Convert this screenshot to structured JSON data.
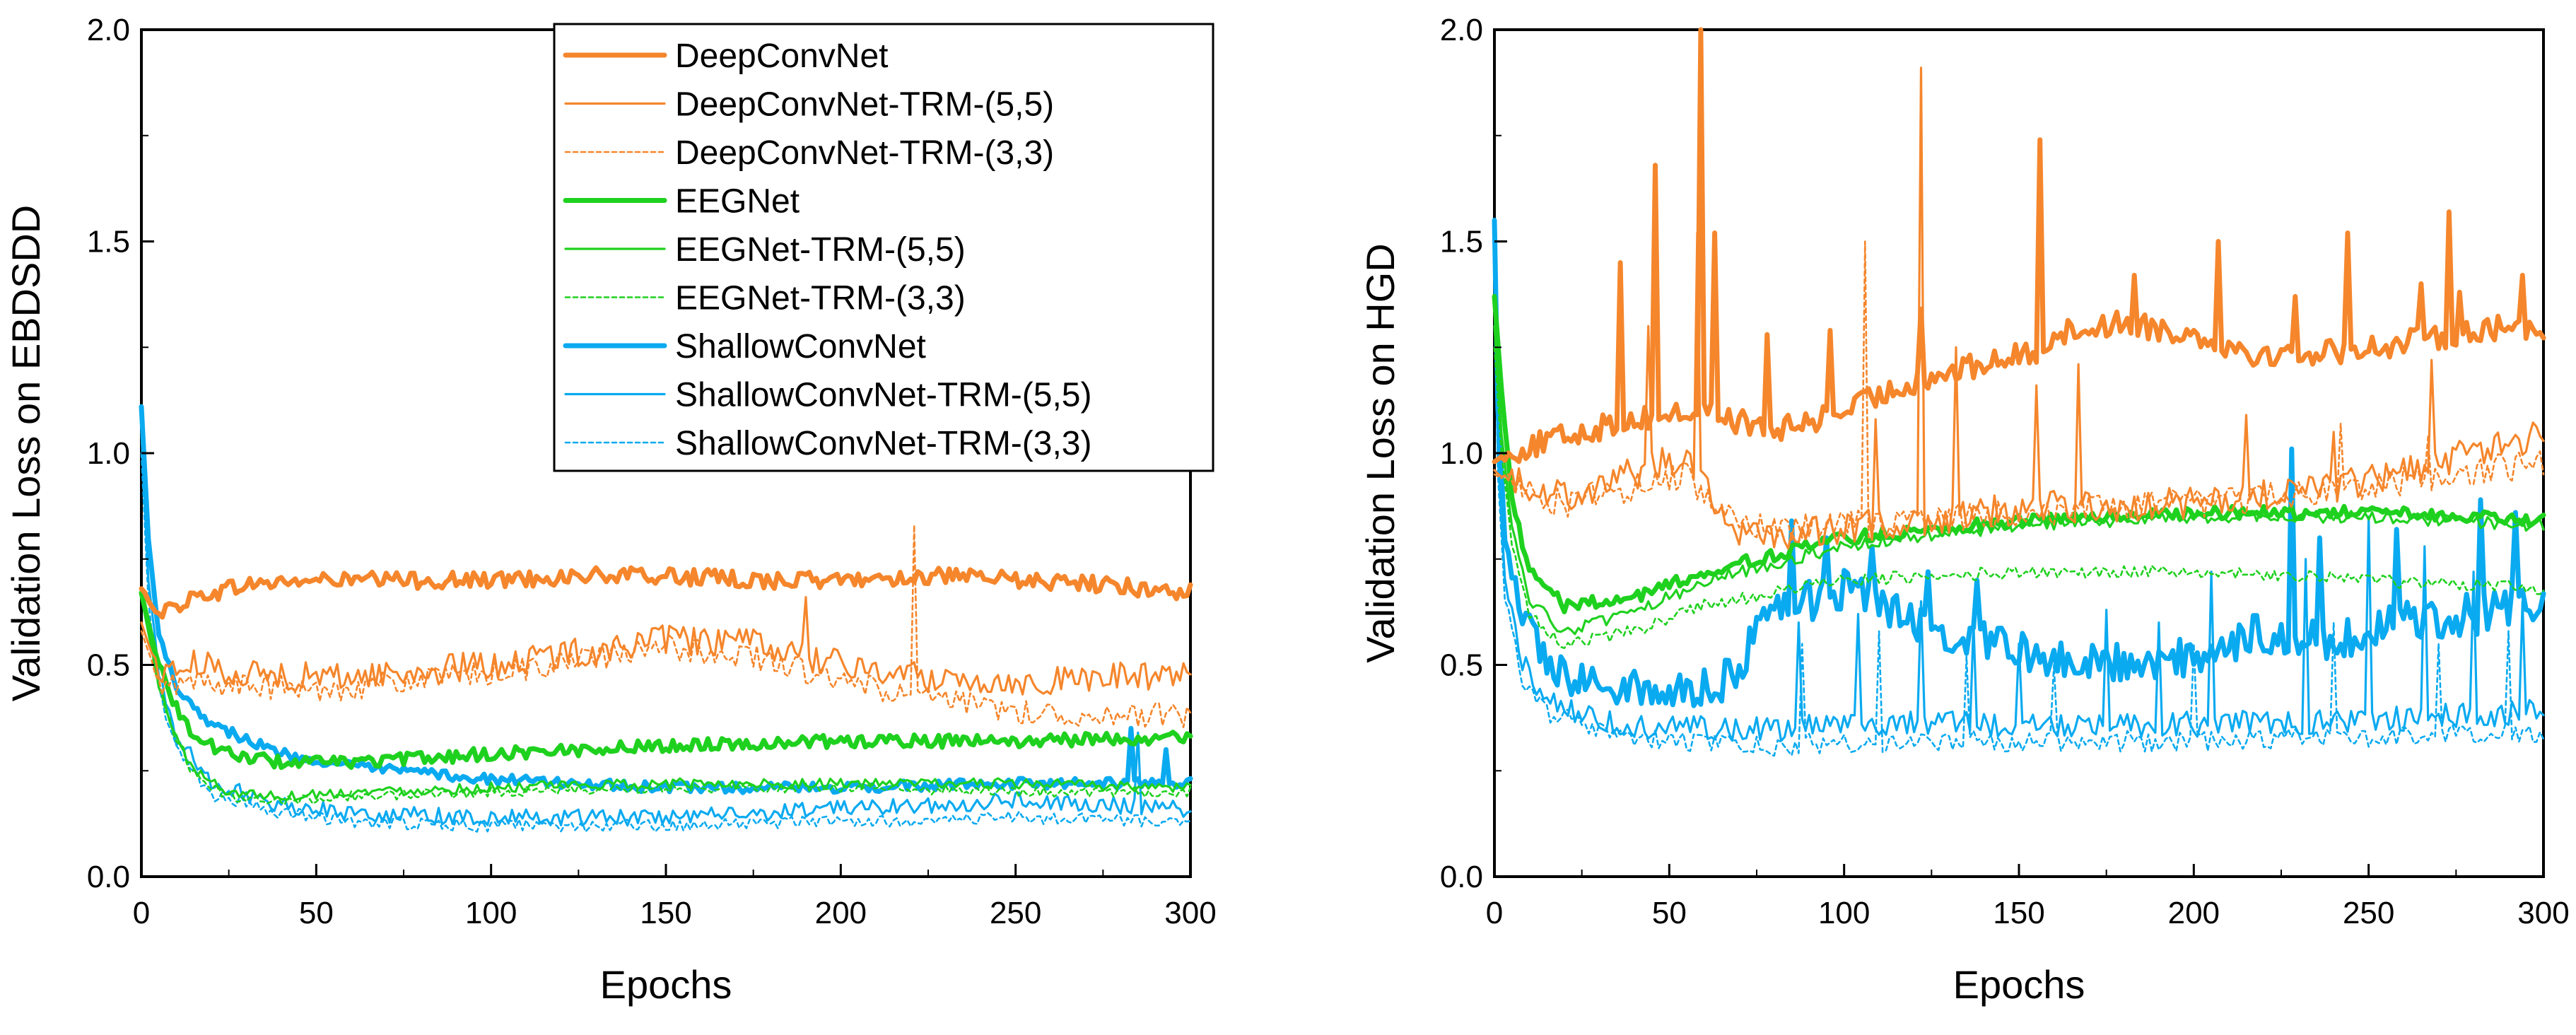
{
  "colors": {
    "DeepConvNet": "#f5862c",
    "EEGNet": "#1fd11f",
    "ShallowConvNet": "#0aaaf0"
  },
  "chart_data": [
    {
      "type": "line",
      "panel": "left",
      "title": "",
      "xlabel": "Epochs",
      "ylabel": "Validation Loss on EBDSDD",
      "xlim": [
        0,
        300
      ],
      "ylim": [
        0,
        2.0
      ],
      "xticks": [
        "0",
        "50",
        "100",
        "150",
        "200",
        "250",
        "300"
      ],
      "yticks": [
        "0.0",
        "0.5",
        "1.0",
        "1.5",
        "2.0"
      ],
      "legend": {
        "location": "top-right",
        "entries": [
          "DeepConvNet",
          "DeepConvNet-TRM-(5,5)",
          "DeepConvNet-TRM-(3,3)",
          "EEGNet",
          "EEGNet-TRM-(5,5)",
          "EEGNet-TRM-(3,3)",
          "ShallowConvNet",
          "ShallowConvNet-TRM-(5,5)",
          "ShallowConvNet-TRM-(3,3)"
        ]
      },
      "series": [
        {
          "name": "DeepConvNet",
          "family": "DeepConvNet",
          "style": "thick",
          "x": [
            0,
            5,
            15,
            30,
            50,
            75,
            100,
            125,
            150,
            175,
            200,
            225,
            250,
            275,
            300
          ],
          "y": [
            0.68,
            0.62,
            0.66,
            0.69,
            0.7,
            0.7,
            0.7,
            0.71,
            0.71,
            0.7,
            0.7,
            0.71,
            0.7,
            0.69,
            0.67
          ],
          "noise": 0.02,
          "spikes": []
        },
        {
          "name": "DeepConvNet-TRM-(5,5)",
          "family": "DeepConvNet",
          "style": "thin",
          "x": [
            0,
            5,
            15,
            30,
            50,
            75,
            100,
            125,
            150,
            175,
            200,
            225,
            250,
            275,
            300
          ],
          "y": [
            0.6,
            0.48,
            0.5,
            0.48,
            0.47,
            0.48,
            0.5,
            0.53,
            0.56,
            0.55,
            0.5,
            0.47,
            0.46,
            0.47,
            0.48
          ],
          "noise": 0.035,
          "spikes": [
            [
              190,
              0.66
            ]
          ]
        },
        {
          "name": "DeepConvNet-TRM-(3,3)",
          "family": "DeepConvNet",
          "style": "dotted",
          "x": [
            0,
            5,
            15,
            30,
            50,
            75,
            100,
            125,
            150,
            175,
            200,
            225,
            250,
            275,
            300
          ],
          "y": [
            0.58,
            0.45,
            0.46,
            0.45,
            0.44,
            0.46,
            0.48,
            0.51,
            0.54,
            0.52,
            0.46,
            0.42,
            0.39,
            0.38,
            0.38
          ],
          "noise": 0.03,
          "spikes": [
            [
              221,
              0.83
            ]
          ]
        },
        {
          "name": "EEGNet",
          "family": "EEGNet",
          "style": "thick",
          "x": [
            0,
            5,
            10,
            15,
            25,
            40,
            60,
            100,
            150,
            200,
            250,
            300
          ],
          "y": [
            0.67,
            0.5,
            0.4,
            0.33,
            0.29,
            0.27,
            0.27,
            0.29,
            0.31,
            0.32,
            0.32,
            0.33
          ],
          "noise": 0.015,
          "spikes": []
        },
        {
          "name": "EEGNet-TRM-(5,5)",
          "family": "EEGNet",
          "style": "thin",
          "x": [
            0,
            5,
            10,
            15,
            25,
            40,
            60,
            100,
            150,
            200,
            250,
            300
          ],
          "y": [
            0.66,
            0.45,
            0.33,
            0.25,
            0.2,
            0.19,
            0.2,
            0.21,
            0.22,
            0.22,
            0.22,
            0.21
          ],
          "noise": 0.012,
          "spikes": []
        },
        {
          "name": "EEGNet-TRM-(3,3)",
          "family": "EEGNet",
          "style": "dotted",
          "x": [
            0,
            5,
            10,
            15,
            25,
            40,
            60,
            100,
            150,
            200,
            250,
            300
          ],
          "y": [
            0.66,
            0.44,
            0.32,
            0.24,
            0.19,
            0.18,
            0.19,
            0.2,
            0.21,
            0.21,
            0.2,
            0.2
          ],
          "noise": 0.012,
          "spikes": []
        },
        {
          "name": "ShallowConvNet",
          "family": "ShallowConvNet",
          "style": "thick",
          "x": [
            0,
            2,
            5,
            10,
            20,
            40,
            60,
            100,
            150,
            200,
            250,
            300
          ],
          "y": [
            1.11,
            0.8,
            0.57,
            0.45,
            0.36,
            0.29,
            0.26,
            0.23,
            0.21,
            0.21,
            0.22,
            0.22
          ],
          "noise": 0.012,
          "spikes": [
            [
              283,
              0.35
            ],
            [
              293,
              0.3
            ]
          ]
        },
        {
          "name": "ShallowConvNet-TRM-(5,5)",
          "family": "ShallowConvNet",
          "style": "thin",
          "x": [
            0,
            2,
            5,
            10,
            20,
            40,
            60,
            100,
            150,
            200,
            250,
            300
          ],
          "y": [
            1.05,
            0.7,
            0.48,
            0.33,
            0.22,
            0.17,
            0.15,
            0.14,
            0.14,
            0.16,
            0.18,
            0.16
          ],
          "noise": 0.02,
          "spikes": [
            [
              285,
              0.34
            ]
          ]
        },
        {
          "name": "ShallowConvNet-TRM-(3,3)",
          "family": "ShallowConvNet",
          "style": "dotted",
          "x": [
            0,
            2,
            5,
            10,
            20,
            40,
            60,
            100,
            150,
            200,
            250,
            300
          ],
          "y": [
            1.0,
            0.65,
            0.44,
            0.3,
            0.19,
            0.15,
            0.13,
            0.12,
            0.12,
            0.13,
            0.14,
            0.13
          ],
          "noise": 0.015,
          "spikes": []
        }
      ]
    },
    {
      "type": "line",
      "panel": "right",
      "title": "",
      "xlabel": "Epochs",
      "ylabel": "Validation Loss on HGD",
      "xlim": [
        0,
        300
      ],
      "ylim": [
        0,
        2.0
      ],
      "xticks": [
        "0",
        "50",
        "100",
        "150",
        "200",
        "250",
        "300"
      ],
      "yticks": [
        "0.0",
        "0.5",
        "1.0",
        "1.5",
        "2.0"
      ],
      "series": [
        {
          "name": "DeepConvNet",
          "family": "DeepConvNet",
          "style": "thick",
          "x": [
            0,
            5,
            20,
            40,
            60,
            80,
            100,
            120,
            140,
            155,
            160,
            180,
            200,
            220,
            240,
            260,
            280,
            300
          ],
          "y": [
            0.98,
            1.0,
            1.04,
            1.08,
            1.1,
            1.05,
            1.1,
            1.17,
            1.21,
            1.24,
            1.28,
            1.31,
            1.28,
            1.23,
            1.24,
            1.26,
            1.29,
            1.3
          ],
          "noise": 0.03,
          "spikes": [
            [
              36,
              1.45
            ],
            [
              46,
              1.68
            ],
            [
              59,
              2.0
            ],
            [
              63,
              1.52
            ],
            [
              78,
              1.28
            ],
            [
              96,
              1.29
            ],
            [
              122,
              1.34
            ],
            [
              156,
              1.74
            ],
            [
              183,
              1.42
            ],
            [
              207,
              1.5
            ],
            [
              229,
              1.37
            ],
            [
              244,
              1.52
            ],
            [
              265,
              1.4
            ],
            [
              273,
              1.57
            ],
            [
              276,
              1.38
            ],
            [
              294,
              1.42
            ]
          ]
        },
        {
          "name": "DeepConvNet-TRM-(5,5)",
          "family": "DeepConvNet",
          "style": "thin",
          "x": [
            0,
            5,
            20,
            40,
            55,
            70,
            100,
            150,
            200,
            250,
            300
          ],
          "y": [
            0.96,
            0.94,
            0.9,
            0.95,
            1.0,
            0.8,
            0.82,
            0.87,
            0.88,
            0.93,
            1.05
          ],
          "noise": 0.04,
          "spikes": [
            [
              44,
              1.3
            ],
            [
              58,
              1.52
            ],
            [
              109,
              1.08
            ],
            [
              122,
              1.91
            ],
            [
              132,
              1.25
            ],
            [
              155,
              1.16
            ],
            [
              167,
              1.21
            ],
            [
              215,
              1.09
            ],
            [
              240,
              1.05
            ],
            [
              268,
              1.22
            ]
          ]
        },
        {
          "name": "DeepConvNet-TRM-(3,3)",
          "family": "DeepConvNet",
          "style": "dotted",
          "x": [
            0,
            5,
            20,
            40,
            55,
            70,
            100,
            150,
            200,
            250,
            300
          ],
          "y": [
            0.95,
            0.93,
            0.88,
            0.92,
            0.95,
            0.82,
            0.83,
            0.86,
            0.88,
            0.92,
            0.98
          ],
          "noise": 0.035,
          "spikes": [
            [
              106,
              1.5
            ],
            [
              242,
              1.07
            ],
            [
              267,
              1.04
            ]
          ]
        },
        {
          "name": "EEGNet",
          "family": "EEGNet",
          "style": "thick",
          "x": [
            0,
            2,
            5,
            10,
            20,
            40,
            60,
            100,
            150,
            200,
            250,
            300
          ],
          "y": [
            1.37,
            1.15,
            0.9,
            0.72,
            0.64,
            0.66,
            0.72,
            0.8,
            0.84,
            0.86,
            0.86,
            0.84
          ],
          "noise": 0.015,
          "spikes": []
        },
        {
          "name": "EEGNet-TRM-(5,5)",
          "family": "EEGNet",
          "style": "thin",
          "x": [
            0,
            2,
            5,
            10,
            20,
            40,
            60,
            100,
            150,
            200,
            250,
            300
          ],
          "y": [
            1.3,
            1.05,
            0.82,
            0.65,
            0.58,
            0.62,
            0.7,
            0.78,
            0.83,
            0.85,
            0.85,
            0.83
          ],
          "noise": 0.015,
          "spikes": []
        },
        {
          "name": "EEGNet-TRM-(3,3)",
          "family": "EEGNet",
          "style": "dotted",
          "x": [
            0,
            2,
            5,
            10,
            20,
            40,
            60,
            100,
            150,
            200,
            250,
            300
          ],
          "y": [
            1.25,
            1.0,
            0.78,
            0.62,
            0.55,
            0.58,
            0.64,
            0.7,
            0.72,
            0.72,
            0.7,
            0.68
          ],
          "noise": 0.015,
          "spikes": []
        },
        {
          "name": "ShallowConvNet",
          "family": "ShallowConvNet",
          "style": "thick",
          "x": [
            0,
            1,
            3,
            8,
            15,
            30,
            50,
            65,
            80,
            100,
            120,
            140,
            160,
            180,
            200,
            220,
            240,
            260,
            280,
            300
          ],
          "y": [
            1.55,
            1.1,
            0.8,
            0.6,
            0.5,
            0.45,
            0.44,
            0.45,
            0.62,
            0.68,
            0.6,
            0.55,
            0.52,
            0.5,
            0.52,
            0.58,
            0.56,
            0.6,
            0.62,
            0.65
          ],
          "noise": 0.05,
          "spikes": [
            [
              85,
              0.84
            ],
            [
              95,
              0.8
            ],
            [
              108,
              0.78
            ],
            [
              124,
              0.72
            ],
            [
              138,
              0.7
            ],
            [
              228,
              1.01
            ],
            [
              236,
              0.8
            ],
            [
              258,
              0.82
            ],
            [
              282,
              0.89
            ],
            [
              292,
              0.86
            ]
          ]
        },
        {
          "name": "ShallowConvNet-TRM-(5,5)",
          "family": "ShallowConvNet",
          "style": "thin",
          "x": [
            0,
            1,
            3,
            8,
            15,
            30,
            50,
            80,
            120,
            160,
            200,
            250,
            300
          ],
          "y": [
            1.45,
            1.0,
            0.7,
            0.5,
            0.42,
            0.37,
            0.35,
            0.35,
            0.36,
            0.36,
            0.36,
            0.37,
            0.39
          ],
          "noise": 0.03,
          "spikes": [
            [
              87,
              0.6
            ],
            [
              104,
              0.62
            ],
            [
              122,
              0.65
            ],
            [
              137,
              0.6
            ],
            [
              150,
              0.55
            ],
            [
              175,
              0.63
            ],
            [
              190,
              0.6
            ],
            [
              205,
              0.72
            ],
            [
              232,
              0.75
            ],
            [
              250,
              0.85
            ],
            [
              266,
              0.78
            ],
            [
              280,
              0.72
            ],
            [
              294,
              0.65
            ]
          ]
        },
        {
          "name": "ShallowConvNet-TRM-(3,3)",
          "family": "ShallowConvNet",
          "style": "dotted",
          "x": [
            0,
            1,
            3,
            8,
            15,
            30,
            50,
            80,
            120,
            160,
            200,
            250,
            300
          ],
          "y": [
            1.4,
            0.95,
            0.66,
            0.47,
            0.39,
            0.34,
            0.32,
            0.31,
            0.32,
            0.32,
            0.32,
            0.33,
            0.34
          ],
          "noise": 0.025,
          "spikes": [
            [
              88,
              0.55
            ],
            [
              110,
              0.58
            ],
            [
              135,
              0.52
            ],
            [
              160,
              0.5
            ],
            [
              200,
              0.55
            ],
            [
              240,
              0.6
            ],
            [
              270,
              0.55
            ],
            [
              290,
              0.58
            ]
          ]
        }
      ]
    }
  ]
}
